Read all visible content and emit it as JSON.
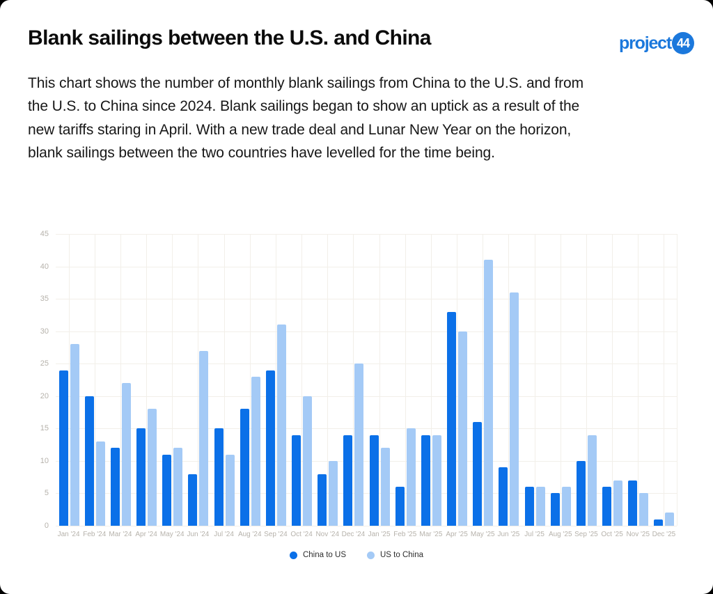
{
  "page": {
    "title": "Blank sailings between the U.S. and China",
    "description": "This chart shows the number of monthly blank sailings from China to the U.S. and from the U.S. to China since 2024. Blank sailings began to show an uptick as a result of the new tariffs staring in April. With a new trade deal and Lunar New Year on the horizon, blank sailings between the two countries have levelled for the time being."
  },
  "logo": {
    "text": "project",
    "badge": "44",
    "color": "#1b78dc"
  },
  "chart_data": {
    "type": "bar",
    "title": "",
    "xlabel": "",
    "ylabel": "",
    "categories": [
      "Jan '24",
      "Feb '24",
      "Mar '24",
      "Apr '24",
      "May '24",
      "Jun '24",
      "Jul '24",
      "Aug '24",
      "Sep '24",
      "Oct '24",
      "Nov '24",
      "Dec '24",
      "Jan '25",
      "Feb '25",
      "Mar '25",
      "Apr '25",
      "May '25",
      "Jun '25",
      "Jul '25",
      "Aug '25",
      "Sep '25",
      "Oct '25",
      "Nov '25",
      "Dec '25"
    ],
    "series": [
      {
        "name": "China to US",
        "color": "#0b70e8",
        "values": [
          24,
          20,
          12,
          15,
          11,
          8,
          15,
          18,
          24,
          14,
          8,
          14,
          14,
          6,
          14,
          33,
          16,
          9,
          6,
          5,
          10,
          6,
          7,
          1
        ]
      },
      {
        "name": "US to China",
        "color": "#a4caf6",
        "values": [
          28,
          13,
          22,
          18,
          12,
          27,
          11,
          23,
          31,
          20,
          10,
          25,
          12,
          15,
          14,
          30,
          41,
          36,
          6,
          6,
          14,
          7,
          5,
          2
        ]
      }
    ],
    "ylim": [
      0,
      45
    ],
    "ytick_step": 5,
    "grid": true,
    "legend_position": "bottom",
    "grid_color": "#f2efe9",
    "tick_color": "#b6b2ab"
  }
}
